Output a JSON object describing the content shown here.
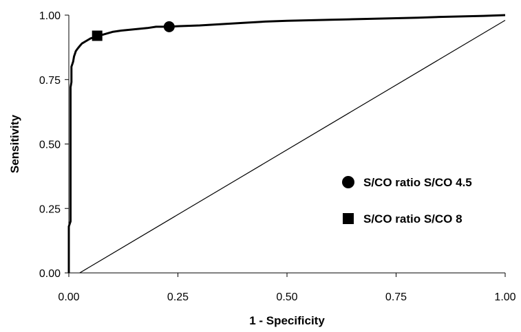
{
  "chart_data": {
    "type": "line",
    "title": "",
    "xlabel": "1 - Specificity",
    "ylabel": "Sensitivity",
    "xlim": [
      0,
      1
    ],
    "ylim": [
      0,
      1
    ],
    "x_ticks": [
      "0.00",
      "0.25",
      "0.50",
      "0.75",
      "1.00"
    ],
    "y_ticks": [
      "0.00",
      "0.25",
      "0.50",
      "0.75",
      "1.00"
    ],
    "grid": false,
    "legend_position": "right",
    "series": [
      {
        "type": "line",
        "x": [
          0.0,
          0.0,
          0.004,
          0.004,
          0.006,
          0.006,
          0.008,
          0.01,
          0.012,
          0.014,
          0.016,
          0.02,
          0.025,
          0.03,
          0.04,
          0.05,
          0.06,
          0.065,
          0.08,
          0.1,
          0.12,
          0.15,
          0.18,
          0.2,
          0.23,
          0.25,
          0.3,
          0.35,
          0.4,
          0.45,
          0.5,
          0.55,
          0.6,
          0.65,
          0.7,
          0.75,
          0.8,
          0.85,
          0.9,
          0.95,
          1.0
        ],
        "y": [
          0.0,
          0.18,
          0.2,
          0.72,
          0.74,
          0.8,
          0.81,
          0.82,
          0.84,
          0.85,
          0.86,
          0.87,
          0.88,
          0.89,
          0.9,
          0.91,
          0.915,
          0.92,
          0.925,
          0.935,
          0.94,
          0.945,
          0.95,
          0.955,
          0.955,
          0.957,
          0.96,
          0.965,
          0.97,
          0.975,
          0.978,
          0.98,
          0.982,
          0.984,
          0.986,
          0.988,
          0.99,
          0.993,
          0.995,
          0.997,
          1.0
        ],
        "color": "#000000"
      },
      {
        "type": "line",
        "x": [
          0.025,
          1.0
        ],
        "y": [
          0.0,
          0.98
        ],
        "color": "#000000"
      }
    ],
    "markers": [
      {
        "name": "S/CO ratio S/CO 4.5",
        "shape": "circle",
        "x": 0.23,
        "y": 0.955
      },
      {
        "name": "S/CO ratio S/CO 8",
        "shape": "square",
        "x": 0.065,
        "y": 0.92
      }
    ]
  }
}
